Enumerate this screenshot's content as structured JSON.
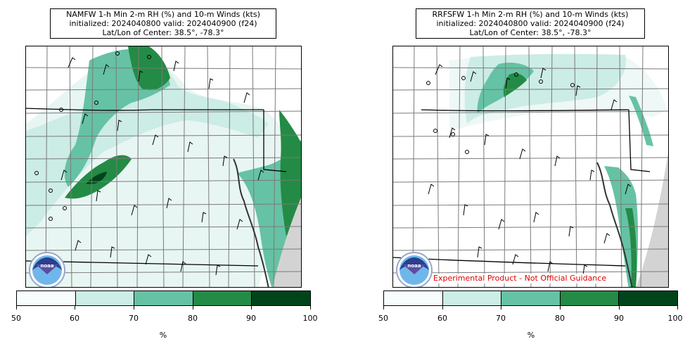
{
  "panels": [
    {
      "title_line1": "NAMFW 1-h Min 2-m RH (%) and 10-m Winds (kts)",
      "title_line2": "initialized: 2024040800 valid: 2024040900 (f24)",
      "title_line3": "Lat/Lon of Center: 38.5°, -78.3°",
      "logo_icon": "noaa-logo-icon",
      "logo_text": "noaa"
    },
    {
      "title_line1": "RRFSFW 1-h Min 2-m RH (%) and 10-m Winds (kts)",
      "title_line2": "initialized: 2024040800 valid: 2024040900 (f24)",
      "title_line3": "Lat/Lon of Center: 38.5°, -78.3°",
      "logo_icon": "noaa-logo-icon",
      "logo_text": "noaa",
      "disclaimer": "Experimental Product - Not Official Guidance"
    }
  ],
  "colorbar": {
    "unit": "%",
    "ticks": [
      "50",
      "60",
      "70",
      "80",
      "90",
      "100"
    ],
    "colors": [
      "#f7fcfd",
      "#ccece6",
      "#66c2a4",
      "#238b45",
      "#00441b"
    ]
  },
  "colors": {
    "ocean": "#d3d3d3",
    "county_border": "#7a7a7a",
    "state_border": "#000000",
    "disclaimer": "#e00000"
  }
}
